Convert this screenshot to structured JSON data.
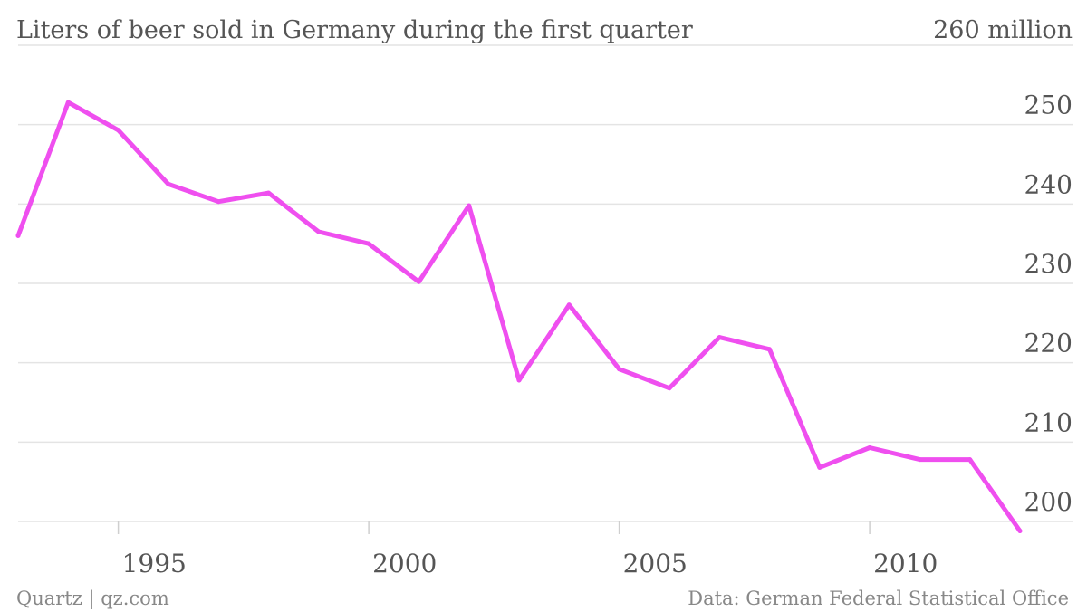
{
  "footer": {
    "credit": "Quartz | qz.com",
    "source": "Data: German Federal Statistical Office"
  },
  "chart_data": {
    "type": "line",
    "title": "Liters of beer sold in Germany during the first quarter",
    "y_unit_label": "260 million",
    "x": [
      1993,
      1994,
      1995,
      1996,
      1997,
      1998,
      1999,
      2000,
      2001,
      2002,
      2003,
      2004,
      2005,
      2006,
      2007,
      2008,
      2009,
      2010,
      2011,
      2012,
      2013
    ],
    "series": [
      {
        "values": [
          236.0,
          252.8,
          249.3,
          242.5,
          240.3,
          241.4,
          236.5,
          235.0,
          230.2,
          239.8,
          217.8,
          227.3,
          219.2,
          216.8,
          223.2,
          221.7,
          206.8,
          209.3,
          207.8,
          207.8,
          198.8
        ],
        "color": "#ef4fef"
      }
    ],
    "ylim": [
      200,
      260
    ],
    "xlim": [
      1993,
      2013
    ],
    "y_ticks": [
      200,
      210,
      220,
      230,
      240,
      250
    ],
    "x_ticks": [
      1995,
      2000,
      2005,
      2010
    ],
    "grid": true
  }
}
